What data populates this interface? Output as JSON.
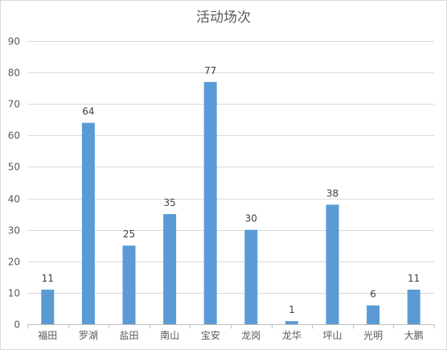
{
  "chart_data": {
    "type": "bar",
    "title": "活动场次",
    "categories": [
      "福田",
      "罗湖",
      "盐田",
      "南山",
      "宝安",
      "龙岗",
      "龙华",
      "坪山",
      "光明",
      "大鹏"
    ],
    "values": [
      11,
      64,
      25,
      35,
      77,
      30,
      1,
      38,
      6,
      11
    ],
    "ylim": [
      0,
      90
    ],
    "yticks": [
      0,
      10,
      20,
      30,
      40,
      50,
      60,
      70,
      80,
      90
    ],
    "grid": true,
    "legend": "none",
    "data_labels": true,
    "bar_color": "#5b9bd5"
  }
}
